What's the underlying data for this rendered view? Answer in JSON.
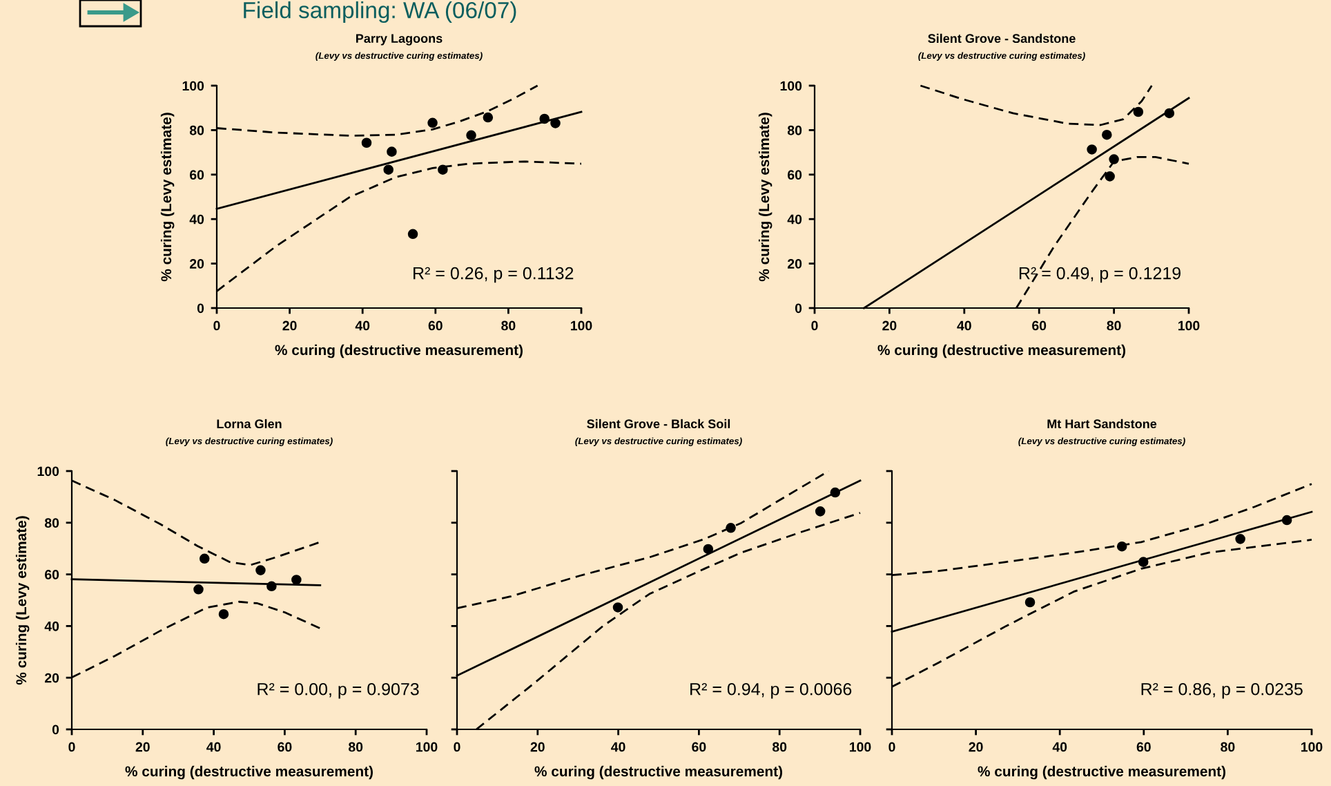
{
  "chart_data": [
    {
      "type": "scatter",
      "title": "Parry Lagoons",
      "subtitle": "(Levy vs destructive curing estimates)",
      "xlabel": "% curing (destructive measurement)",
      "ylabel": "% curing (Levy estimate)",
      "xlim": [
        0,
        100
      ],
      "ylim": [
        0,
        100
      ],
      "xticks": [
        0,
        20,
        40,
        60,
        80,
        100
      ],
      "yticks": [
        0,
        20,
        40,
        60,
        80,
        100
      ],
      "annotations": [
        "Field sampling: WA (06/07)",
        "R² = 0.26, p = 0.1132"
      ],
      "series": [
        {
          "marker": "circle",
          "color": "#000000",
          "x": [
            41.1,
            47.1,
            48.0,
            53.8,
            59.2,
            62.0,
            69.8,
            74.4,
            89.9,
            92.9
          ],
          "values": [
            74.3,
            62.2,
            70.3,
            33.3,
            83.3,
            62.2,
            77.7,
            85.7,
            85.1,
            83.1
          ]
        },
        {
          "type": "line",
          "line_style": "solid",
          "color": "#000000",
          "x": [
            0,
            100
          ],
          "values": [
            44.6,
            88.2
          ]
        },
        {
          "type": "line",
          "line_style": "dashed",
          "color": "#000000",
          "x": [
            0,
            16.2,
            36.4,
            49,
            59.2,
            66.6,
            74.2,
            81.7,
            88
          ],
          "values": [
            80.9,
            78.9,
            77.5,
            77.9,
            80.3,
            83.9,
            88.4,
            94.4,
            100
          ]
        },
        {
          "type": "line",
          "line_style": "dashed",
          "color": "#000000",
          "x": [
            0,
            16.2,
            36.4,
            49,
            59.2,
            69.1,
            84.3,
            100
          ],
          "values": [
            7.6,
            27.7,
            49.8,
            58.8,
            62.9,
            64.9,
            65.9,
            64.9
          ]
        }
      ]
    },
    {
      "type": "scatter",
      "title": "Silent Grove - Sandstone",
      "subtitle": "(Levy vs destructive curing estimates)",
      "xlabel": "% curing (destructive measurement)",
      "ylabel": "% curing (Levy estimate)",
      "xlim": [
        0,
        100
      ],
      "ylim": [
        0,
        100
      ],
      "xticks": [
        0,
        20,
        40,
        60,
        80,
        100
      ],
      "yticks": [
        0,
        20,
        40,
        60,
        80,
        100
      ],
      "annotations": [
        "R² = 0.49, p = 0.1219"
      ],
      "series": [
        {
          "marker": "circle",
          "color": "#000000",
          "x": [
            74.1,
            78.1,
            80.0,
            78.9,
            86.5,
            94.8
          ],
          "values": [
            71.3,
            77.9,
            66.9,
            59.2,
            88.2,
            87.6
          ]
        },
        {
          "type": "line",
          "line_style": "solid",
          "color": "#000000",
          "x": [
            13.2,
            100
          ],
          "values": [
            0,
            94.4
          ]
        },
        {
          "type": "line",
          "line_style": "dashed",
          "color": "#000000",
          "x": [
            28.3,
            39.4,
            53,
            67.7,
            76.4,
            82.5,
            87.4,
            90.1
          ],
          "values": [
            100,
            94,
            87.6,
            82.9,
            82.3,
            84.9,
            93,
            100
          ]
        },
        {
          "type": "line",
          "line_style": "dashed",
          "color": "#000000",
          "x": [
            53.9,
            64,
            73.9,
            80,
            86.2,
            91.1,
            100
          ],
          "values": [
            0,
            27.7,
            51.8,
            65.9,
            67.9,
            67.9,
            64.9
          ]
        }
      ]
    },
    {
      "type": "scatter",
      "title": "Lorna Glen",
      "subtitle": "(Levy vs destructive curing estimates)",
      "xlabel": "% curing (destructive measurement)",
      "ylabel": "% curing (Levy estimate)",
      "xlim": [
        0,
        100
      ],
      "ylim": [
        0,
        100
      ],
      "xticks": [
        0,
        20,
        40,
        60,
        80,
        100
      ],
      "yticks": [
        0,
        20,
        40,
        60,
        80,
        100
      ],
      "annotations": [
        "R² = 0.00, p = 0.9073"
      ],
      "series": [
        {
          "marker": "circle",
          "color": "#000000",
          "x": [
            35.7,
            37.4,
            42.8,
            53.2,
            56.3,
            63.3
          ],
          "values": [
            54.2,
            66.1,
            44.6,
            61.6,
            55.4,
            57.9
          ]
        },
        {
          "type": "line",
          "line_style": "solid",
          "color": "#000000",
          "x": [
            0,
            70
          ],
          "values": [
            58.1,
            55.8
          ]
        },
        {
          "type": "line",
          "line_style": "dashed",
          "color": "#000000",
          "x": [
            0,
            12.1,
            25,
            35.4,
            44.5,
            50.3,
            57.5,
            70
          ],
          "values": [
            96.3,
            88.8,
            79.4,
            71,
            64.8,
            63.6,
            66.6,
            72.5
          ]
        },
        {
          "type": "line",
          "line_style": "dashed",
          "color": "#000000",
          "x": [
            0,
            12.1,
            25,
            38,
            47.1,
            52.3,
            60,
            70
          ],
          "values": [
            20.1,
            28.4,
            38.2,
            47.1,
            49.4,
            48.8,
            45.3,
            39.1
          ]
        }
      ]
    },
    {
      "type": "scatter",
      "title": "Silent Grove - Black Soil",
      "subtitle": "(Levy vs destructive curing estimates)",
      "xlabel": "% curing (destructive measurement)",
      "xlim": [
        0,
        100
      ],
      "ylim": [
        0,
        100
      ],
      "xticks": [
        0,
        20,
        40,
        60,
        80,
        100
      ],
      "yticks": [
        {
          "value": 0,
          "label": null
        },
        {
          "value": 20,
          "label": null
        },
        {
          "value": 40,
          "label": null
        },
        {
          "value": 60,
          "label": null
        },
        {
          "value": 80,
          "label": null
        },
        {
          "value": 100,
          "label": null
        }
      ],
      "tick_labels": "x",
      "annotations": [
        "R² = 0.94, p = 0.0066"
      ],
      "series": [
        {
          "marker": "circle",
          "color": "#000000",
          "x": [
            39.9,
            62.3,
            67.9,
            90.1,
            93.8
          ],
          "values": [
            47.2,
            69.8,
            78,
            84.4,
            91.7
          ]
        },
        {
          "type": "line",
          "line_style": "solid",
          "color": "#000000",
          "x": [
            0,
            100
          ],
          "values": [
            20.8,
            96.3
          ]
        },
        {
          "type": "line",
          "line_style": "dashed",
          "color": "#000000",
          "x": [
            0,
            13.4,
            30.5,
            47.7,
            61.4,
            70.5,
            82,
            92.2
          ],
          "values": [
            46.9,
            51.5,
            59.5,
            66.6,
            73.7,
            79.9,
            90.6,
            100
          ]
        },
        {
          "type": "line",
          "line_style": "dashed",
          "color": "#000000",
          "x": [
            4.8,
            19.1,
            36.2,
            47.7,
            61.4,
            70.5,
            85.4,
            100
          ],
          "values": [
            0,
            17.8,
            40,
            52.4,
            62.2,
            68.4,
            76.4,
            83.8
          ]
        }
      ]
    },
    {
      "type": "scatter",
      "title": "Mt Hart Sandstone",
      "subtitle": "(Levy vs destructive curing estimates)",
      "xlabel": "% curing (destructive measurement)",
      "xlim": [
        0,
        100
      ],
      "ylim": [
        0,
        100
      ],
      "xticks": [
        0,
        20,
        40,
        60,
        80,
        100
      ],
      "yticks": [
        {
          "value": 0,
          "label": null
        },
        {
          "value": 20,
          "label": null
        },
        {
          "value": 40,
          "label": null
        },
        {
          "value": 60,
          "label": null
        },
        {
          "value": 80,
          "label": null
        },
        {
          "value": 100,
          "label": null
        }
      ],
      "tick_labels": "x",
      "annotations": [
        "R² = 0.86, p = 0.0235"
      ],
      "series": [
        {
          "marker": "circle",
          "color": "#000000",
          "x": [
            32.9,
            54.8,
            59.9,
            83,
            94.1
          ],
          "values": [
            49.2,
            70.8,
            64.8,
            73.7,
            81
          ]
        },
        {
          "type": "line",
          "line_style": "solid",
          "color": "#000000",
          "x": [
            0,
            100
          ],
          "values": [
            37.8,
            84.2
          ]
        },
        {
          "type": "line",
          "line_style": "dashed",
          "color": "#000000",
          "x": [
            0,
            11.1,
            27.2,
            43.3,
            59.4,
            75.5,
            86.3,
            100
          ],
          "values": [
            59.7,
            61.3,
            64.8,
            68.4,
            72.5,
            79.9,
            86.1,
            95
          ]
        },
        {
          "type": "line",
          "line_style": "dashed",
          "color": "#000000",
          "x": [
            0,
            11.1,
            27.2,
            43.3,
            59.4,
            75.5,
            100
          ],
          "values": [
            16.5,
            25.8,
            40,
            53.3,
            62.2,
            68.4,
            73.4
          ]
        }
      ]
    }
  ]
}
